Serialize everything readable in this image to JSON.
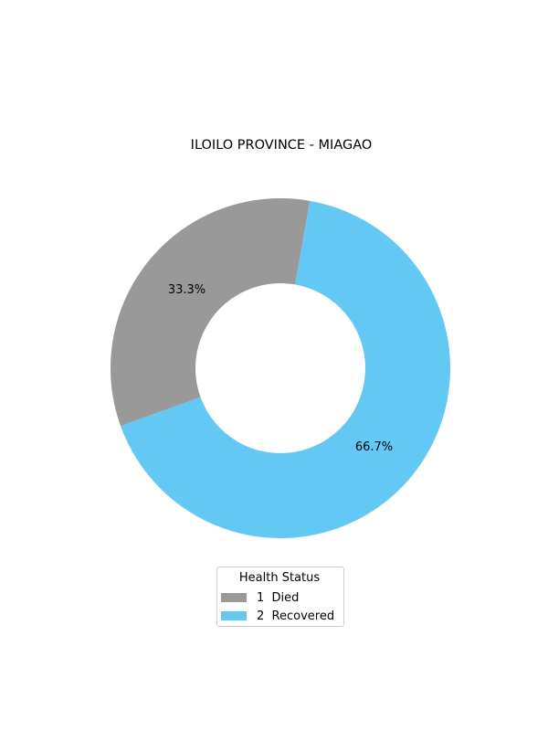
{
  "chart_data": {
    "type": "pie",
    "title": "ILOILO PROVINCE - MIAGAO",
    "slices": [
      {
        "label": "1  Died",
        "value": 33.3,
        "pct_label": "33.3%",
        "color": "#999999"
      },
      {
        "label": "2  Recovered",
        "value": 66.7,
        "pct_label": "66.7%",
        "color": "#63c8f3"
      }
    ],
    "legend": {
      "title": "Health Status",
      "placement": "bottom-center"
    }
  }
}
